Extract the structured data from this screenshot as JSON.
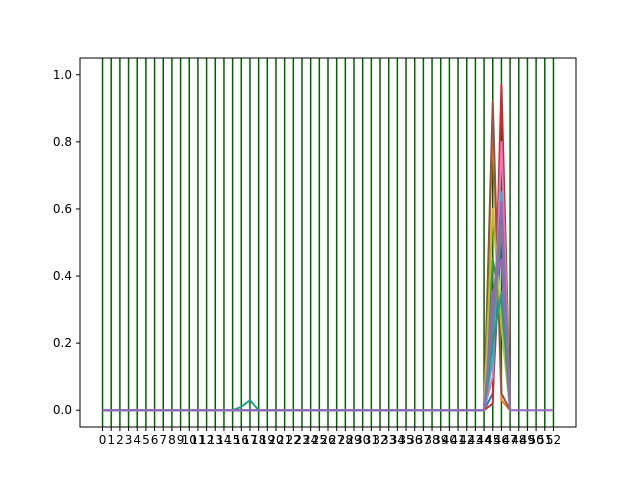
{
  "chart_data": {
    "type": "line",
    "title": "",
    "xlabel": "",
    "ylabel": "",
    "grid": false,
    "legend": "none",
    "xlim": [
      -2.6,
      54.6
    ],
    "ylim": [
      -0.05,
      1.05
    ],
    "x_ticks": [
      0,
      1,
      2,
      3,
      4,
      5,
      6,
      7,
      8,
      9,
      10,
      11,
      12,
      13,
      14,
      15,
      16,
      17,
      18,
      19,
      20,
      21,
      22,
      23,
      24,
      25,
      26,
      27,
      28,
      29,
      30,
      31,
      32,
      33,
      34,
      35,
      36,
      37,
      38,
      39,
      40,
      41,
      42,
      43,
      44,
      45,
      46,
      47,
      48,
      49,
      50,
      51,
      52
    ],
    "x_tick_labels": [
      "0",
      "1",
      "2",
      "3",
      "4",
      "5",
      "6",
      "7",
      "8",
      "9",
      "10",
      "11",
      "12",
      "13",
      "14",
      "15",
      "16",
      "17",
      "18",
      "19",
      "20",
      "21",
      "22",
      "23",
      "24",
      "25",
      "26",
      "27",
      "28",
      "29",
      "30",
      "31",
      "32",
      "33",
      "34",
      "35",
      "36",
      "37",
      "38",
      "39",
      "40",
      "41",
      "42",
      "43",
      "44",
      "45",
      "46",
      "47",
      "48",
      "49",
      "50",
      "51",
      "52"
    ],
    "y_ticks": [
      0.0,
      0.2,
      0.4,
      0.6,
      0.8,
      1.0
    ],
    "y_tick_labels": [
      "0.0",
      "0.2",
      "0.4",
      "0.6",
      "0.8",
      "1.0"
    ],
    "vertical_lines": {
      "x": [
        0,
        1,
        2,
        3,
        4,
        5,
        6,
        7,
        8,
        9,
        10,
        11,
        12,
        13,
        14,
        15,
        16,
        17,
        18,
        19,
        20,
        21,
        22,
        23,
        24,
        25,
        26,
        27,
        28,
        29,
        30,
        31,
        32,
        33,
        34,
        35,
        36,
        37,
        38,
        39,
        40,
        41,
        42,
        43,
        44,
        45,
        46,
        47,
        48,
        49,
        50,
        51,
        52
      ],
      "color": "#006400"
    },
    "series": [
      {
        "color": "#1f77b4",
        "points": [
          [
            0,
            0
          ],
          [
            44,
            0
          ],
          [
            45,
            0.05
          ],
          [
            46,
            0.55
          ],
          [
            47,
            0
          ]
        ]
      },
      {
        "color": "#ff7f0e",
        "points": [
          [
            0,
            0
          ],
          [
            44,
            0
          ],
          [
            45,
            0.85
          ],
          [
            46,
            0.03
          ],
          [
            47,
            0
          ]
        ]
      },
      {
        "color": "#2ca02c",
        "points": [
          [
            0,
            0
          ],
          [
            44,
            0
          ],
          [
            45,
            0.45
          ],
          [
            46,
            0.3
          ],
          [
            47,
            0
          ]
        ]
      },
      {
        "color": "#d62728",
        "points": [
          [
            0,
            0
          ],
          [
            44,
            0
          ],
          [
            45,
            0.02
          ],
          [
            46,
            0.97
          ],
          [
            47,
            0
          ]
        ]
      },
      {
        "color": "#9467bd",
        "points": [
          [
            0,
            0
          ],
          [
            44,
            0
          ],
          [
            45,
            0.35
          ],
          [
            46,
            0.45
          ],
          [
            47,
            0
          ]
        ]
      },
      {
        "color": "#8c564b",
        "points": [
          [
            0,
            0
          ],
          [
            44,
            0
          ],
          [
            45,
            0.92
          ],
          [
            46,
            0.05
          ],
          [
            47,
            0
          ]
        ]
      },
      {
        "color": "#e377c2",
        "points": [
          [
            0,
            0
          ],
          [
            44,
            0
          ],
          [
            45,
            0.1
          ],
          [
            46,
            0.8
          ],
          [
            47,
            0
          ]
        ]
      },
      {
        "color": "#bcbd22",
        "points": [
          [
            0,
            0
          ],
          [
            44,
            0
          ],
          [
            45,
            0.6
          ],
          [
            46,
            0.25
          ],
          [
            47,
            0
          ]
        ]
      },
      {
        "color": "#17becf",
        "points": [
          [
            0,
            0
          ],
          [
            44,
            0
          ],
          [
            45,
            0.15
          ],
          [
            46,
            0.65
          ],
          [
            47,
            0
          ]
        ]
      },
      {
        "color": "#1f9e89",
        "points": [
          [
            0,
            0
          ],
          [
            15,
            0
          ],
          [
            16,
            0.01
          ],
          [
            17,
            0.03
          ],
          [
            18,
            0
          ],
          [
            44,
            0
          ],
          [
            45,
            0.2
          ],
          [
            46,
            0.35
          ],
          [
            47,
            0
          ]
        ]
      },
      {
        "color": "#7f7f7f",
        "points": [
          [
            0,
            0
          ],
          [
            44,
            0
          ],
          [
            45,
            0.25
          ],
          [
            46,
            0.55
          ],
          [
            47,
            0
          ]
        ]
      },
      {
        "color": "#9467bd",
        "points": [
          [
            0,
            0
          ],
          [
            44,
            0
          ],
          [
            45,
            0.3
          ],
          [
            46,
            0.62
          ],
          [
            47,
            0
          ],
          [
            52,
            0
          ]
        ]
      }
    ]
  }
}
